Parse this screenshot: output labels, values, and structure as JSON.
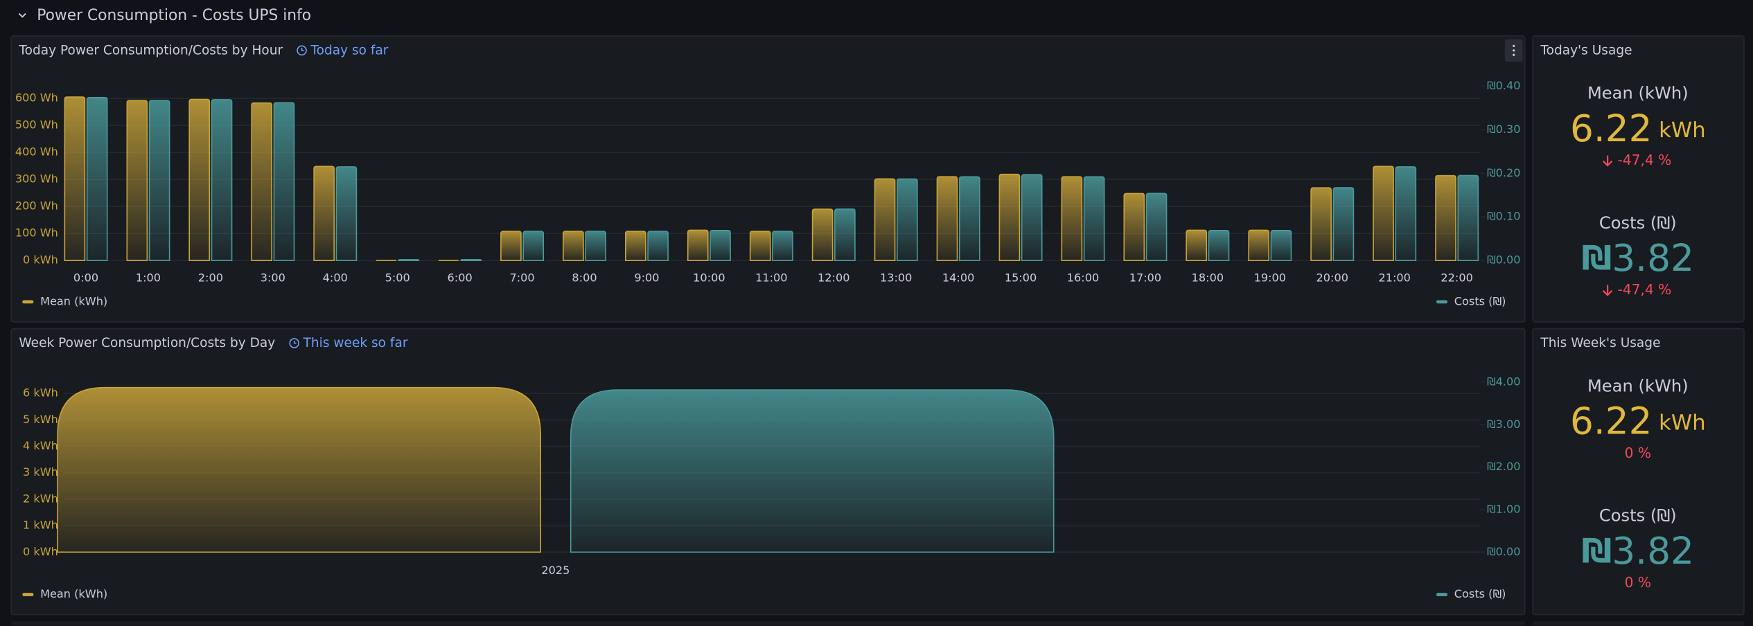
{
  "header": {
    "title": "Power Consumption - Costs UPS info"
  },
  "chart_data": [
    {
      "type": "bar",
      "title": "Today Power Consumption/Costs by Hour",
      "subtitle": "Today so far",
      "categories": [
        "0:00",
        "1:00",
        "2:00",
        "3:00",
        "4:00",
        "5:00",
        "6:00",
        "7:00",
        "8:00",
        "9:00",
        "10:00",
        "11:00",
        "12:00",
        "13:00",
        "14:00",
        "15:00",
        "16:00",
        "17:00",
        "18:00",
        "19:00",
        "20:00",
        "21:00",
        "22:00"
      ],
      "series": [
        {
          "name": "Mean (kWh)",
          "color": "#c9a43a",
          "values": [
            605,
            592,
            596,
            583,
            348,
            0,
            0,
            108,
            108,
            108,
            112,
            108,
            190,
            302,
            310,
            319,
            310,
            248,
            112,
            112,
            269,
            348,
            314
          ]
        },
        {
          "name": "Costs (₪)",
          "color": "#4a9a9c",
          "axis": "y2",
          "values": [
            0.374,
            0.367,
            0.369,
            0.362,
            0.215,
            0.002,
            0.002,
            0.067,
            0.067,
            0.067,
            0.069,
            0.067,
            0.118,
            0.187,
            0.192,
            0.197,
            0.192,
            0.154,
            0.069,
            0.069,
            0.167,
            0.215,
            0.195
          ]
        }
      ],
      "ylim": [
        0,
        645
      ],
      "yticks": [
        {
          "value": 0,
          "label": "0 kWh"
        },
        {
          "value": 100,
          "label": "100 Wh"
        },
        {
          "value": 200,
          "label": "200 Wh"
        },
        {
          "value": 300,
          "label": "300 Wh"
        },
        {
          "value": 400,
          "label": "400 Wh"
        },
        {
          "value": 500,
          "label": "500 Wh"
        },
        {
          "value": 600,
          "label": "600 Wh"
        }
      ],
      "y2lim": [
        0,
        0.4
      ],
      "y2ticks": [
        {
          "value": 0,
          "label": "₪0.00"
        },
        {
          "value": 0.1,
          "label": "₪0.10"
        },
        {
          "value": 0.2,
          "label": "₪0.20"
        },
        {
          "value": 0.3,
          "label": "₪0.30"
        },
        {
          "value": 0.4,
          "label": "₪0.40"
        }
      ],
      "grid": true,
      "legend": "bottom"
    },
    {
      "type": "bar",
      "title": "Week Power Consumption/Costs by Day",
      "subtitle": "This week so far",
      "categories": [
        "2025"
      ],
      "series": [
        {
          "name": "Mean (kWh)",
          "color": "#c9a43a",
          "values": [
            6.22
          ]
        },
        {
          "name": "Costs (₪)",
          "color": "#4a9a9c",
          "axis": "y2",
          "values": [
            3.82
          ]
        }
      ],
      "ylim": [
        0,
        6.42
      ],
      "yticks": [
        {
          "value": 0,
          "label": "0 kWh"
        },
        {
          "value": 1,
          "label": "1 kWh"
        },
        {
          "value": 2,
          "label": "2 kWh"
        },
        {
          "value": 3,
          "label": "3 kWh"
        },
        {
          "value": 4,
          "label": "4 kWh"
        },
        {
          "value": 5,
          "label": "5 kWh"
        },
        {
          "value": 6,
          "label": "6 kWh"
        }
      ],
      "y2lim": [
        0,
        4
      ],
      "y2ticks": [
        {
          "value": 0,
          "label": "₪0.00"
        },
        {
          "value": 1,
          "label": "₪1.00"
        },
        {
          "value": 2,
          "label": "₪2.00"
        },
        {
          "value": 3,
          "label": "₪3.00"
        },
        {
          "value": 4,
          "label": "₪4.00"
        }
      ],
      "grid": true,
      "legend": "bottom"
    }
  ],
  "stats": [
    {
      "title": "Today's Usage",
      "items": [
        {
          "label": "Mean (kWh)",
          "value": 6.22,
          "unit": "kWh",
          "color": "#e0b83a",
          "change": "-47,4 %"
        },
        {
          "label": "Costs (₪)",
          "prefix": "₪",
          "value": 3.82,
          "color": "#4a9a9c",
          "change": "-47,4 %"
        }
      ]
    },
    {
      "title": "This Week's Usage",
      "items": [
        {
          "label": "Mean (kWh)",
          "value": 6.22,
          "unit": "kWh",
          "color": "#e0b83a",
          "change": "0 %"
        },
        {
          "label": "Costs (₪)",
          "prefix": "₪",
          "value": 3.82,
          "color": "#4a9a9c",
          "change": "0 %"
        }
      ]
    }
  ]
}
